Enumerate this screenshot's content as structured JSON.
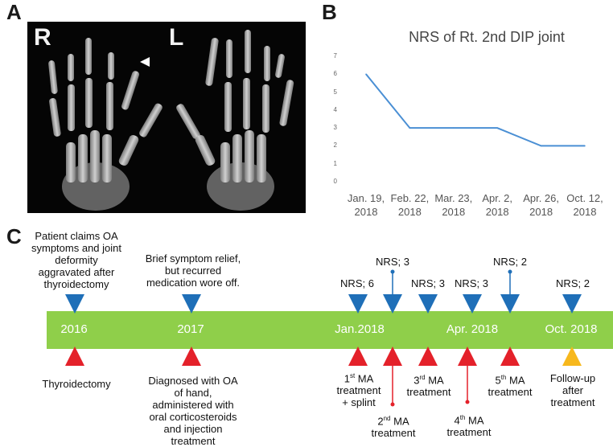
{
  "panels": {
    "a": "A",
    "b": "B",
    "c": "C"
  },
  "xray": {
    "right_label": "R",
    "left_label": "L"
  },
  "chart_data": {
    "type": "line",
    "title": "NRS of Rt. 2nd DIP joint",
    "categories": [
      "Jan. 19, 2018",
      "Feb. 22, 2018",
      "Mar. 23, 2018",
      "Apr. 2, 2018",
      "Apr. 26, 2018",
      "Oct. 12, 2018"
    ],
    "category_lines": [
      [
        "Jan. 19,",
        "2018"
      ],
      [
        "Feb. 22,",
        "2018"
      ],
      [
        "Mar. 23,",
        "2018"
      ],
      [
        "Apr. 2,",
        "2018"
      ],
      [
        "Apr. 26,",
        "2018"
      ],
      [
        "Oct. 12,",
        "2018"
      ]
    ],
    "values": [
      6,
      3,
      3,
      3,
      2,
      2
    ],
    "ylim": [
      0,
      7
    ],
    "yticks": [
      "0",
      "1",
      "2",
      "3",
      "4",
      "5",
      "6",
      "7"
    ],
    "xlabel": "",
    "ylabel": "",
    "color": "#4a8fd4",
    "grid": false
  },
  "timeline": {
    "years": [
      "2016",
      "2017",
      "Jan.2018",
      "Apr. 2018",
      "Oct. 2018"
    ],
    "top_notes": {
      "n2016": [
        "Patient claims OA",
        "symptoms and joint",
        "deformity",
        "aggravated after",
        "thyroidectomy"
      ],
      "n2017": [
        "Brief symptom relief,",
        "but recurred",
        "medication wore off."
      ],
      "nrs1": "NRS; 6",
      "nrs2": "NRS; 3",
      "nrs3": "NRS; 3",
      "nrs4": "NRS; 3",
      "nrs5": "NRS; 2",
      "nrs6": "NRS; 2"
    },
    "bottom_notes": {
      "thyroid": "Thyroidectomy",
      "diag": [
        "Diagnosed with OA",
        "of hand,",
        "administered with",
        "oral corticosteroids",
        "and injection",
        "treatment"
      ],
      "ma1_num": "1",
      "ma1_sup": "st",
      "ma1_rest": " MA",
      "ma1_l2": "treatment",
      "ma1_l3": "+ splint",
      "ma2_num": "2",
      "ma2_sup": "nd",
      "ma2_rest": " MA",
      "ma2_l2": "treatment",
      "ma3_num": "3",
      "ma3_sup": "rd",
      "ma3_rest": " MA",
      "ma3_l2": "treatment",
      "ma4_num": "4",
      "ma4_sup": "th",
      "ma4_rest": " MA",
      "ma4_l2": "treatment",
      "ma5_num": "5",
      "ma5_sup": "th",
      "ma5_rest": " MA",
      "ma5_l2": "treatment",
      "follow": [
        "Follow-up",
        "after",
        "treatment"
      ]
    },
    "colors": {
      "bar": "#8fcf4a",
      "marker_top": "#1f6fb8",
      "marker_bottom": "#e4212a",
      "followup": "#f7b81d"
    }
  }
}
